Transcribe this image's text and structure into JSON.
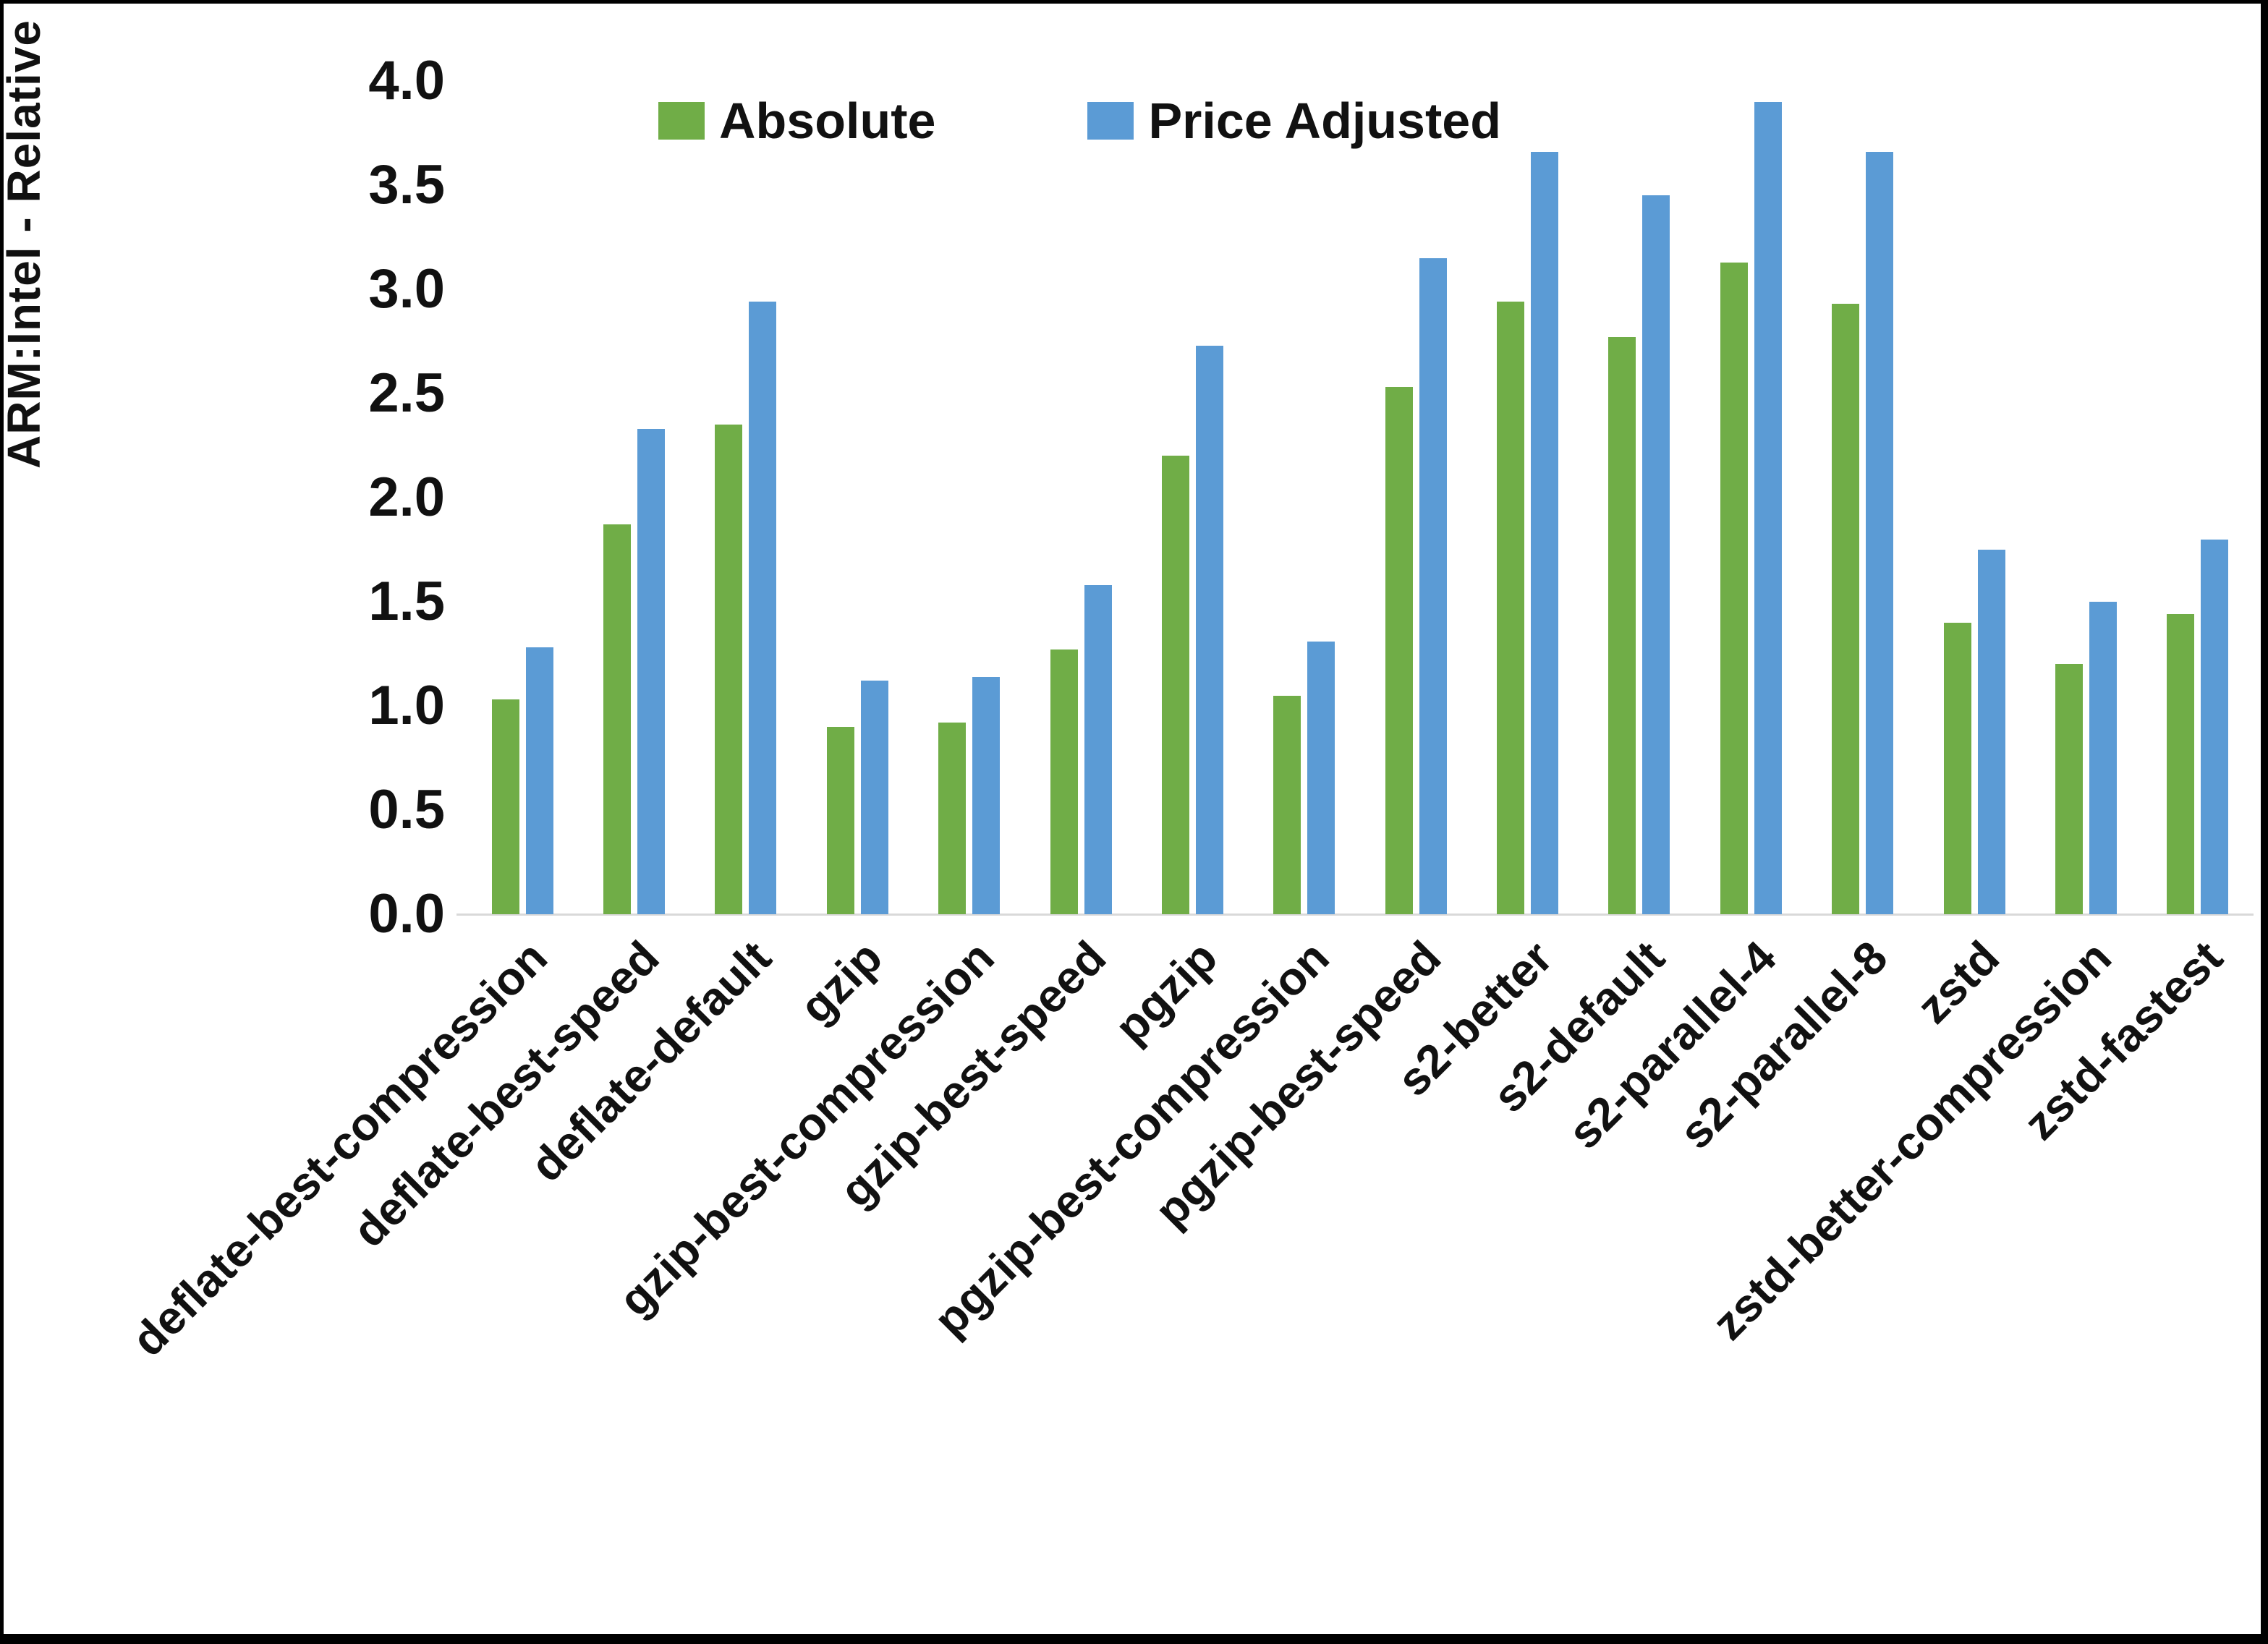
{
  "chart_data": {
    "type": "bar",
    "title": "",
    "xlabel": "",
    "ylabel": "ARM:Intel - Relative Performance",
    "ylim": [
      0.0,
      4.0
    ],
    "ytick_step": 0.5,
    "ytick_labels": [
      "0.0",
      "0.5",
      "1.0",
      "1.5",
      "2.0",
      "2.5",
      "3.0",
      "3.5",
      "4.0"
    ],
    "grid": false,
    "legend_position": "top-center",
    "categories": [
      "deflate-best-compression",
      "deflate-best-speed",
      "deflate-default",
      "gzip",
      "gzip-best-compression",
      "gzip-best-speed",
      "pgzip",
      "pgzip-best-compression",
      "pgzip-best-speed",
      "s2-better",
      "s2-default",
      "s2-parallel-4",
      "s2-parallel-8",
      "zstd",
      "zstd-better-compression",
      "zstd-fastest"
    ],
    "series": [
      {
        "name": "Absolute",
        "color": "#70AD47",
        "values": [
          1.03,
          1.87,
          2.35,
          0.9,
          0.92,
          1.27,
          2.2,
          1.05,
          2.53,
          2.94,
          2.77,
          3.13,
          2.93,
          1.4,
          1.2,
          1.44
        ]
      },
      {
        "name": "Price Adjusted",
        "color": "#5B9BD5",
        "values": [
          1.28,
          2.33,
          2.94,
          1.12,
          1.14,
          1.58,
          2.73,
          1.31,
          3.15,
          3.66,
          3.45,
          3.9,
          3.66,
          1.75,
          1.5,
          1.8
        ]
      }
    ],
    "axis_line_color": "#d9d9d9",
    "text_color": "#111111"
  }
}
